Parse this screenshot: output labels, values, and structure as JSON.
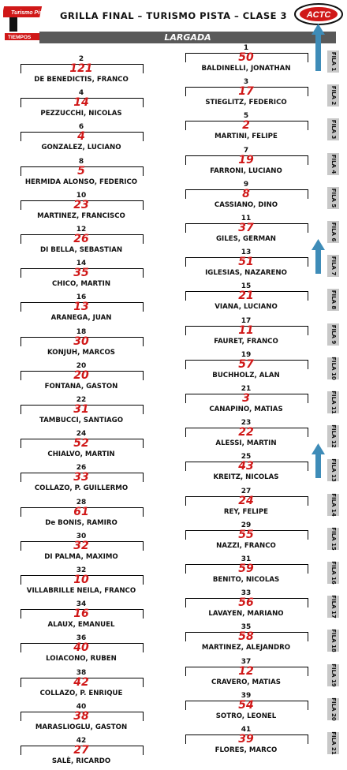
{
  "header": {
    "title": "GRILLA FINAL – TURISMO PISTA – CLASE 3",
    "bar_label": "LARGADA",
    "logo_left_text": "Turismo Pista",
    "logo_left_sub": "TIEMPOS",
    "logo_right_text": "ACTC"
  },
  "grid": [
    {
      "pos": "1",
      "num": "50",
      "driver": "BALDINELLI, JONATHAN"
    },
    {
      "pos": "2",
      "num": "121",
      "driver": "DE BENEDICTIS, FRANCO"
    },
    {
      "pos": "3",
      "num": "17",
      "driver": "STIEGLITZ, FEDERICO"
    },
    {
      "pos": "4",
      "num": "14",
      "driver": "PEZZUCCHI, NICOLAS"
    },
    {
      "pos": "5",
      "num": "2",
      "driver": "MARTINI, FELIPE"
    },
    {
      "pos": "6",
      "num": "4",
      "driver": "GONZALEZ, LUCIANO"
    },
    {
      "pos": "7",
      "num": "19",
      "driver": "FARRONI, LUCIANO"
    },
    {
      "pos": "8",
      "num": "5",
      "driver": "HERMIDA ALONSO, FEDERICO"
    },
    {
      "pos": "9",
      "num": "8",
      "driver": "CASSIANO, DINO"
    },
    {
      "pos": "10",
      "num": "23",
      "driver": "MARTINEZ, FRANCISCO"
    },
    {
      "pos": "11",
      "num": "37",
      "driver": "GILES, GERMAN"
    },
    {
      "pos": "12",
      "num": "26",
      "driver": "DI BELLA, SEBASTIAN"
    },
    {
      "pos": "13",
      "num": "51",
      "driver": "IGLESIAS, NAZARENO"
    },
    {
      "pos": "14",
      "num": "35",
      "driver": "CHICO, MARTIN"
    },
    {
      "pos": "15",
      "num": "21",
      "driver": "VIANA, LUCIANO"
    },
    {
      "pos": "16",
      "num": "13",
      "driver": "ARANEGA, JUAN"
    },
    {
      "pos": "17",
      "num": "11",
      "driver": "FAURET, FRANCO"
    },
    {
      "pos": "18",
      "num": "30",
      "driver": "KONJUH, MARCOS"
    },
    {
      "pos": "19",
      "num": "57",
      "driver": "BUCHHOLZ, ALAN"
    },
    {
      "pos": "20",
      "num": "20",
      "driver": "FONTANA, GASTON"
    },
    {
      "pos": "21",
      "num": "3",
      "driver": "CANAPINO, MATIAS"
    },
    {
      "pos": "22",
      "num": "31",
      "driver": "TAMBUCCI, SANTIAGO"
    },
    {
      "pos": "23",
      "num": "22",
      "driver": "ALESSI, MARTIN"
    },
    {
      "pos": "24",
      "num": "52",
      "driver": "CHIALVO, MARTIN"
    },
    {
      "pos": "25",
      "num": "43",
      "driver": "KREITZ, NICOLAS"
    },
    {
      "pos": "26",
      "num": "33",
      "driver": "COLLAZO, P. GUILLERMO"
    },
    {
      "pos": "27",
      "num": "24",
      "driver": "REY, FELIPE"
    },
    {
      "pos": "28",
      "num": "61",
      "driver": "De BONIS, RAMIRO"
    },
    {
      "pos": "29",
      "num": "55",
      "driver": "NAZZI, FRANCO"
    },
    {
      "pos": "30",
      "num": "32",
      "driver": "DI PALMA, MAXIMO"
    },
    {
      "pos": "31",
      "num": "59",
      "driver": "BENITO, NICOLAS"
    },
    {
      "pos": "32",
      "num": "10",
      "driver": "VILLABRILLE NEILA, FRANCO"
    },
    {
      "pos": "33",
      "num": "56",
      "driver": "LAVAYEN, MARIANO"
    },
    {
      "pos": "34",
      "num": "16",
      "driver": "ALAUX, EMANUEL"
    },
    {
      "pos": "35",
      "num": "58",
      "driver": "MARTINEZ, ALEJANDRO"
    },
    {
      "pos": "36",
      "num": "40",
      "driver": "LOIACONO, RUBEN"
    },
    {
      "pos": "37",
      "num": "12",
      "driver": "CRAVERO, MATIAS"
    },
    {
      "pos": "38",
      "num": "42",
      "driver": "COLLAZO, P. ENRIQUE"
    },
    {
      "pos": "39",
      "num": "54",
      "driver": "SOTRO, LEONEL"
    },
    {
      "pos": "40",
      "num": "38",
      "driver": "MARASLIOGLU, GASTON"
    },
    {
      "pos": "41",
      "num": "39",
      "driver": "FLORES, MARCO"
    },
    {
      "pos": "42",
      "num": "27",
      "driver": "SALÈ, RICARDO"
    }
  ],
  "filas": [
    "FILA 1",
    "FILA 2",
    "FILA 3",
    "FILA 4",
    "FILA 5",
    "FILA 6",
    "FILA 7",
    "FILA 8",
    "FILA 9",
    "FILA 10",
    "FILA 11",
    "FILA 12",
    "FILA 13",
    "FILA 14",
    "FILA 15",
    "FILA 16",
    "FILA 17",
    "FILA 18",
    "FILA 19",
    "FILA 20",
    "FILA 21"
  ],
  "arrow_rows": [
    1,
    7,
    13
  ],
  "colors": {
    "number_red": "#d01818",
    "bar_gray": "#595959",
    "fila_gray": "#c8c8c8",
    "arrow_blue": "#3e8cb8"
  }
}
